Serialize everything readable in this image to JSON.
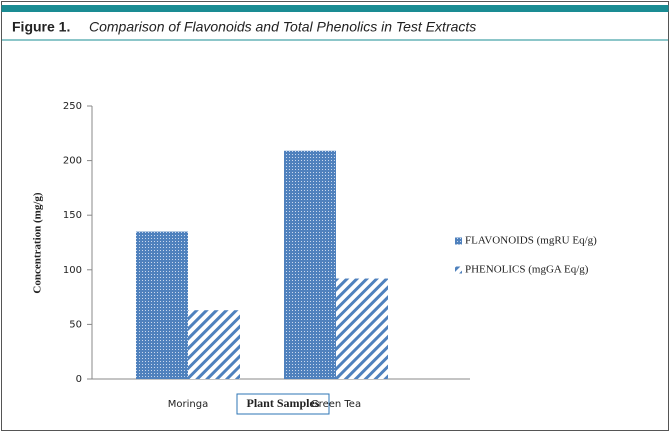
{
  "chart_data": {
    "type": "bar",
    "figure_label": "Figure 1.",
    "title": "Comparison of Flavonoids and Total Phenolics in Test Extracts",
    "categories": [
      "Moringa",
      "Green Tea"
    ],
    "series": [
      {
        "name": "FLAVONOIDS (mgRU Eq/g)",
        "color": "#4f81bd",
        "pattern": "dots",
        "values": [
          135,
          209
        ]
      },
      {
        "name": "PHENOLICS (mgGA Eq/g)",
        "color": "#4f81bd",
        "pattern": "hatch",
        "values": [
          63,
          92
        ]
      }
    ],
    "xlabel": "Plant Samples",
    "ylabel": "Concentration (mg/g)",
    "ylim": [
      0,
      250
    ],
    "yticks": [
      0,
      50,
      100,
      150,
      200,
      250
    ],
    "grid": false,
    "legend": "right"
  }
}
